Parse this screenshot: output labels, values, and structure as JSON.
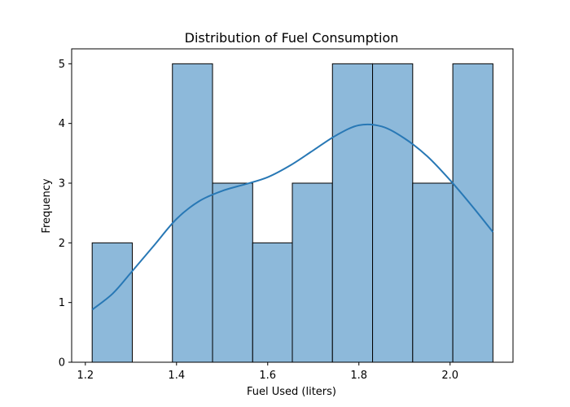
{
  "chart_data": {
    "type": "bar",
    "title": "Distribution of Fuel Consumption",
    "xlabel": "Fuel Used (liters)",
    "ylabel": "Frequency",
    "bins": [
      [
        1.215,
        1.303
      ],
      [
        1.303,
        1.391
      ],
      [
        1.391,
        1.479
      ],
      [
        1.479,
        1.567
      ],
      [
        1.567,
        1.654
      ],
      [
        1.654,
        1.742
      ],
      [
        1.742,
        1.83
      ],
      [
        1.83,
        1.918
      ],
      [
        1.918,
        2.006
      ],
      [
        2.006,
        2.094
      ]
    ],
    "values": [
      2,
      0,
      5,
      3,
      2,
      3,
      5,
      5,
      3,
      5
    ],
    "kde": {
      "x": [
        1.215,
        1.26,
        1.3,
        1.35,
        1.4,
        1.45,
        1.5,
        1.55,
        1.6,
        1.65,
        1.7,
        1.75,
        1.8,
        1.85,
        1.9,
        1.95,
        2.0,
        2.05,
        2.094
      ],
      "y": [
        0.88,
        1.15,
        1.5,
        1.95,
        2.4,
        2.7,
        2.87,
        2.98,
        3.1,
        3.3,
        3.55,
        3.8,
        3.97,
        3.95,
        3.75,
        3.45,
        3.05,
        2.6,
        2.18
      ]
    },
    "xlim": [
      1.17,
      2.138
    ],
    "ylim": [
      0,
      5.25
    ],
    "xticks": [
      1.2,
      1.4,
      1.6,
      1.8,
      2.0
    ],
    "xtick_labels": [
      "1.2",
      "1.4",
      "1.6",
      "1.8",
      "2.0"
    ],
    "yticks": [
      0,
      1,
      2,
      3,
      4,
      5
    ],
    "ytick_labels": [
      "0",
      "1",
      "2",
      "3",
      "4",
      "5"
    ],
    "bar_color": "#8db9da",
    "line_color": "#2878b5",
    "grid": false,
    "legend": "none"
  }
}
